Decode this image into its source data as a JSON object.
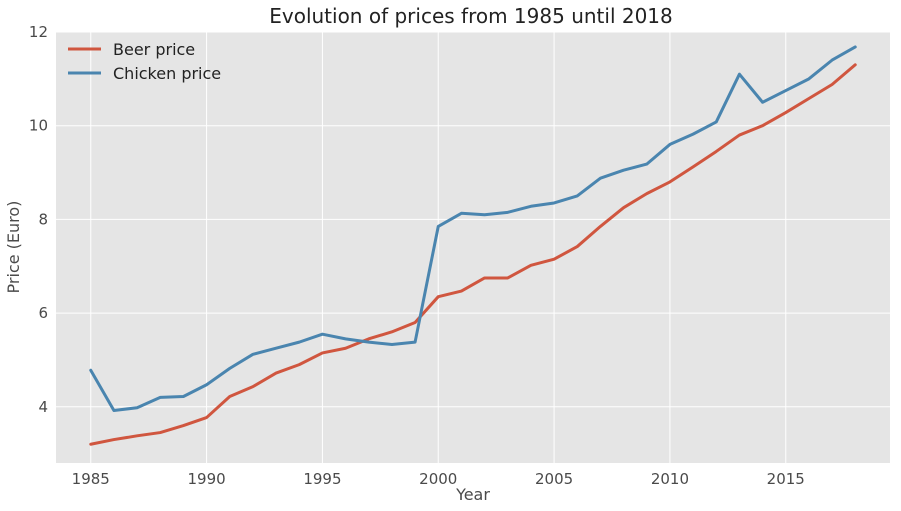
{
  "chart_data": {
    "type": "line",
    "title": "Evolution of prices from 1985 until 2018",
    "xlabel": "Year",
    "ylabel": "Price (Euro)",
    "xlim": [
      1983.5,
      2019.5
    ],
    "ylim": [
      2.8,
      12.0
    ],
    "xticks": [
      1985,
      1990,
      1995,
      2000,
      2005,
      2010,
      2015
    ],
    "yticks": [
      4,
      6,
      8,
      10,
      12
    ],
    "grid": true,
    "legend_position": "top-left",
    "x": [
      1985,
      1986,
      1987,
      1988,
      1989,
      1990,
      1991,
      1992,
      1993,
      1994,
      1995,
      1996,
      1997,
      1998,
      1999,
      2000,
      2001,
      2002,
      2003,
      2004,
      2005,
      2006,
      2007,
      2008,
      2009,
      2010,
      2011,
      2012,
      2013,
      2014,
      2015,
      2016,
      2017,
      2018
    ],
    "series": [
      {
        "name": "Beer price",
        "color": "#d0563f",
        "values": [
          3.2,
          3.3,
          3.38,
          3.45,
          3.6,
          3.77,
          4.22,
          4.43,
          4.72,
          4.9,
          5.15,
          5.25,
          5.45,
          5.6,
          5.8,
          6.35,
          6.47,
          6.75,
          6.75,
          7.02,
          7.15,
          7.42,
          7.85,
          8.25,
          8.55,
          8.8,
          9.12,
          9.45,
          9.8,
          10.0,
          10.28,
          10.58,
          10.88,
          11.3
        ]
      },
      {
        "name": "Chicken price",
        "color": "#4a85af",
        "values": [
          4.78,
          3.92,
          3.98,
          4.2,
          4.22,
          4.47,
          4.82,
          5.12,
          5.25,
          5.38,
          5.55,
          5.45,
          5.38,
          5.33,
          5.38,
          7.85,
          8.13,
          8.1,
          8.15,
          8.28,
          8.35,
          8.5,
          8.88,
          9.05,
          9.18,
          9.6,
          9.82,
          10.08,
          11.1,
          10.5,
          10.75,
          11.0,
          11.4,
          11.68
        ]
      }
    ]
  },
  "colors": {
    "plot_background": "#e5e5e5",
    "grid": "#ffffff"
  }
}
